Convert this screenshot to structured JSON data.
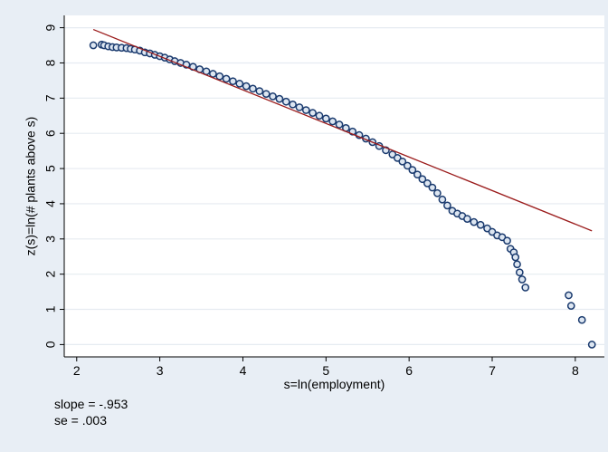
{
  "chart_data": {
    "type": "scatter",
    "xlabel": "s=ln(employment)",
    "ylabel": "z(s)=ln(# plants above s)",
    "xlim": [
      1.85,
      8.35
    ],
    "ylim": [
      -0.35,
      9.35
    ],
    "xticks": [
      "2",
      "3",
      "4",
      "5",
      "6",
      "7",
      "8"
    ],
    "yticks": [
      "0",
      "1",
      "2",
      "3",
      "4",
      "5",
      "6",
      "7",
      "8",
      "9"
    ],
    "grid": "horizontal",
    "marker_color": "#1a3a6e",
    "line_color": "#9b1c1c",
    "fit_line": {
      "x": [
        2.2,
        8.2
      ],
      "y": [
        8.95,
        3.23
      ]
    },
    "annotations": [
      "slope = -.953",
      "se = .003"
    ],
    "series": [
      {
        "x": [
          2.2,
          2.3,
          2.33,
          2.38,
          2.43,
          2.48,
          2.54,
          2.6,
          2.65,
          2.7,
          2.76,
          2.82,
          2.88,
          2.94,
          3.0,
          3.06,
          3.12,
          3.18,
          3.25,
          3.32,
          3.4,
          3.48,
          3.56,
          3.64,
          3.72,
          3.8,
          3.88,
          3.96,
          4.04,
          4.12,
          4.2,
          4.28,
          4.36,
          4.44,
          4.52,
          4.6,
          4.68,
          4.76,
          4.84,
          4.92,
          5.0,
          5.08,
          5.16,
          5.24,
          5.32,
          5.4,
          5.48,
          5.56,
          5.64,
          5.72,
          5.8,
          5.86,
          5.92,
          5.98,
          6.04,
          6.1,
          6.16,
          6.22,
          6.28,
          6.34,
          6.4,
          6.46,
          6.52,
          6.58,
          6.64,
          6.7,
          6.78,
          6.86,
          6.94,
          7.0,
          7.06,
          7.12,
          7.18,
          7.22,
          7.26,
          7.28,
          7.3,
          7.33,
          7.36,
          7.4,
          7.92,
          7.95,
          8.08,
          8.2
        ],
        "y": [
          8.5,
          8.52,
          8.5,
          8.47,
          8.45,
          8.44,
          8.43,
          8.42,
          8.4,
          8.38,
          8.35,
          8.3,
          8.27,
          8.23,
          8.19,
          8.15,
          8.1,
          8.05,
          8.0,
          7.95,
          7.89,
          7.82,
          7.76,
          7.69,
          7.62,
          7.55,
          7.48,
          7.41,
          7.34,
          7.27,
          7.2,
          7.12,
          7.05,
          6.98,
          6.9,
          6.82,
          6.74,
          6.66,
          6.58,
          6.5,
          6.42,
          6.34,
          6.25,
          6.15,
          6.05,
          5.95,
          5.85,
          5.75,
          5.64,
          5.52,
          5.4,
          5.3,
          5.2,
          5.08,
          4.96,
          4.83,
          4.7,
          4.58,
          4.46,
          4.3,
          4.12,
          3.95,
          3.8,
          3.72,
          3.65,
          3.57,
          3.48,
          3.4,
          3.3,
          3.2,
          3.1,
          3.05,
          2.95,
          2.72,
          2.62,
          2.48,
          2.28,
          2.05,
          1.85,
          1.62,
          1.4,
          1.1,
          0.7,
          0.0
        ]
      }
    ]
  }
}
